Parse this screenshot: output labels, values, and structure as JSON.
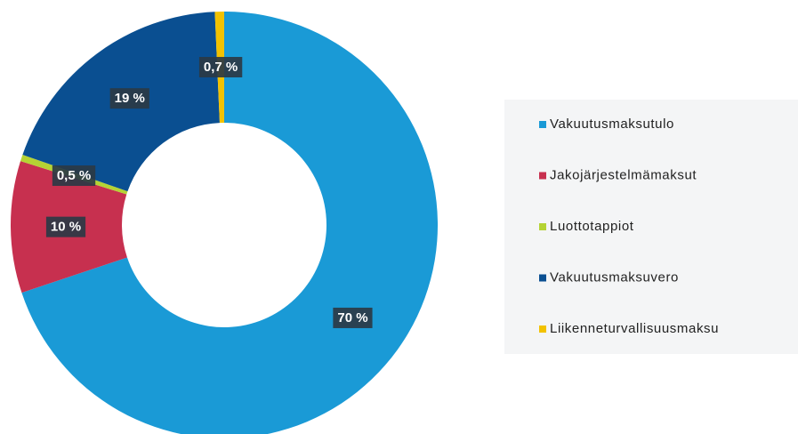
{
  "chart_data": {
    "type": "pie",
    "categories": [
      "Vakuutusmaksutulo",
      "Jakojärjestelmämaksut",
      "Luottotappiot",
      "Vakuutusmaksuvero",
      "Liikenneturvallisuusmaksu"
    ],
    "values": [
      70,
      10,
      0.5,
      19,
      0.7
    ],
    "value_labels": [
      "70 %",
      "10 %",
      "0,5 %",
      "19 %",
      "0,7 %"
    ],
    "colors": [
      "#1a9ad6",
      "#c7304f",
      "#b5d334",
      "#0a4f91",
      "#f2c200"
    ],
    "legend": "right"
  }
}
